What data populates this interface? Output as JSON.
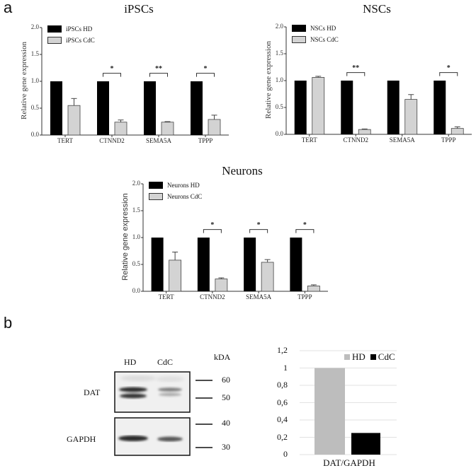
{
  "panel_a": {
    "letter": "a",
    "ylabel": "Relative gene expression",
    "yticks": [
      "2.0",
      "1.5",
      "1.0",
      "0.5",
      "0.0"
    ],
    "categories": [
      "TERT",
      "CTNND2",
      "SEMA5A",
      "TPPP"
    ]
  },
  "panel_b": {
    "letter": "b",
    "blot": {
      "lanes": [
        "HD",
        "CdC"
      ],
      "rows": [
        "DAT",
        "GAPDH"
      ],
      "kda_label": "kDA",
      "markers": [
        "60",
        "50",
        "40",
        "30"
      ]
    }
  },
  "colors": {
    "hd": "#000000",
    "cdc": "#d3d3d3",
    "b_hd": "#bdbdbd",
    "b_cdc": "#000000"
  },
  "chart_data": [
    {
      "type": "bar",
      "title": "iPSCs",
      "xlabel": "",
      "ylabel": "Relative gene expression",
      "ylim": [
        0,
        2.0
      ],
      "yticks": [
        0.0,
        0.5,
        1.0,
        1.5,
        2.0
      ],
      "categories": [
        "TERT",
        "CTNND2",
        "SEMA5A",
        "TPPP"
      ],
      "series": [
        {
          "name": "iPSCs HD",
          "values": [
            1.0,
            1.0,
            1.0,
            1.0
          ],
          "errors": [
            0,
            0,
            0,
            0
          ]
        },
        {
          "name": "iPSCs CdC",
          "values": [
            0.55,
            0.24,
            0.24,
            0.29
          ],
          "errors": [
            0.13,
            0.04,
            0.01,
            0.08
          ]
        }
      ],
      "significance": [
        "",
        "*",
        "**",
        "*"
      ],
      "legend_position": "top-left",
      "grid": false
    },
    {
      "type": "bar",
      "title": "NSCs",
      "xlabel": "",
      "ylabel": "Relative gene expression",
      "ylim": [
        0,
        2.0
      ],
      "yticks": [
        0.0,
        0.5,
        1.0,
        1.5,
        2.0
      ],
      "categories": [
        "TERT",
        "CTNND2",
        "SEMA5A",
        "TPPP"
      ],
      "series": [
        {
          "name": "NSCs HD",
          "values": [
            1.0,
            1.0,
            1.0,
            1.0
          ],
          "errors": [
            0,
            0,
            0,
            0
          ]
        },
        {
          "name": "NSCs CdC",
          "values": [
            1.06,
            0.09,
            0.65,
            0.11
          ],
          "errors": [
            0.02,
            0.01,
            0.09,
            0.03
          ]
        }
      ],
      "significance": [
        "",
        "**",
        "",
        "*"
      ],
      "legend_position": "top-left",
      "grid": false
    },
    {
      "type": "bar",
      "title": "Neurons",
      "xlabel": "",
      "ylabel": "Relative gene expression",
      "ylim": [
        0,
        2.0
      ],
      "yticks": [
        0.0,
        0.5,
        1.0,
        1.5,
        2.0
      ],
      "categories": [
        "TERT",
        "CTNND2",
        "SEMA5A",
        "TPPP"
      ],
      "series": [
        {
          "name": "Neurons HD",
          "values": [
            1.0,
            1.0,
            1.0,
            1.0
          ],
          "errors": [
            0,
            0,
            0,
            0
          ]
        },
        {
          "name": "Neurons CdC",
          "values": [
            0.58,
            0.23,
            0.54,
            0.1
          ],
          "errors": [
            0.15,
            0.02,
            0.05,
            0.02
          ]
        }
      ],
      "significance": [
        "",
        "*",
        "*",
        "*"
      ],
      "legend_position": "top-left",
      "grid": false
    },
    {
      "type": "bar",
      "title": "",
      "xlabel": "DAT/GAPDH",
      "ylabel": "",
      "ylim": [
        0,
        1.2
      ],
      "yticks": [
        "0",
        "0,2",
        "0,4",
        "0,6",
        "0,8",
        "1",
        "1,2"
      ],
      "categories": [
        "DAT/GAPDH"
      ],
      "series": [
        {
          "name": "HD",
          "values": [
            1.0
          ]
        },
        {
          "name": "CdC",
          "values": [
            0.25
          ]
        }
      ],
      "legend_position": "top-right",
      "grid": true
    }
  ]
}
